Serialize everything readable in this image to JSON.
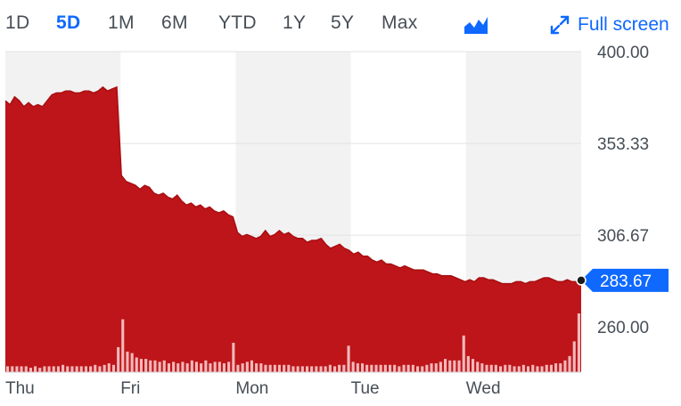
{
  "ranges": [
    {
      "label": "1D",
      "active": false
    },
    {
      "label": "5D",
      "active": true
    },
    {
      "label": "1M",
      "active": false
    },
    {
      "label": "6M",
      "active": false
    },
    {
      "label": "YTD",
      "active": false
    },
    {
      "label": "1Y",
      "active": false
    },
    {
      "label": "5Y",
      "active": false
    },
    {
      "label": "Max",
      "active": false
    }
  ],
  "chart_type_icon": "mountain-chart-icon",
  "fullscreen": {
    "label": "Full screen",
    "icon": "expand-arrows-icon"
  },
  "colors": {
    "series_fill": "#bd1519",
    "series_line": "#a80f12",
    "active_tab": "#0f69ff",
    "price_badge": "#0f69ff",
    "band": "#f2f2f3",
    "grid": "#e3e3e3",
    "text": "#464e56"
  },
  "chart_data": {
    "type": "area",
    "title": "",
    "xlabel": "",
    "ylabel": "",
    "days": [
      "Thu",
      "Fri",
      "Mon",
      "Tue",
      "Wed"
    ],
    "yticks": [
      "400.00",
      "353.33",
      "306.67",
      "260.00"
    ],
    "ylim": [
      237,
      400
    ],
    "last_price": "283.67",
    "last_value": 283.67,
    "grid": true,
    "legend": "none",
    "price_series": [
      375,
      373,
      377,
      375,
      372,
      374,
      372,
      373,
      372,
      375,
      378,
      379,
      379,
      380,
      380,
      379,
      379,
      380,
      380,
      379,
      380,
      382,
      380,
      381,
      382,
      337,
      334,
      333,
      332,
      330,
      332,
      331,
      328,
      327,
      328,
      326,
      325,
      327,
      324,
      322,
      323,
      321,
      322,
      320,
      321,
      319,
      318,
      319,
      317,
      316,
      308,
      306,
      307,
      306,
      305,
      306,
      309,
      306,
      307,
      309,
      307,
      308,
      306,
      305,
      305,
      303,
      304,
      304,
      305,
      302,
      300,
      301,
      302,
      300,
      299,
      297,
      298,
      296,
      296,
      294,
      293,
      294,
      292,
      292,
      291,
      290,
      291,
      290,
      289,
      289,
      289,
      288,
      287,
      287,
      286,
      286,
      286,
      285,
      284,
      283,
      284,
      283,
      285,
      285,
      284,
      284,
      283,
      282,
      282,
      282,
      283,
      283,
      282,
      283,
      283,
      284,
      285,
      285,
      284,
      283,
      283,
      284,
      283,
      283,
      283.67
    ],
    "volume_series": [
      4,
      4,
      4,
      4,
      4,
      3,
      4,
      3,
      4,
      4,
      4,
      4,
      5,
      4,
      4,
      4,
      4,
      4,
      4,
      5,
      4,
      5,
      6,
      5,
      17,
      36,
      14,
      13,
      10,
      9,
      9,
      8,
      8,
      7,
      8,
      6,
      7,
      6,
      7,
      6,
      8,
      7,
      6,
      8,
      6,
      7,
      7,
      6,
      7,
      20,
      5,
      6,
      7,
      8,
      6,
      6,
      5,
      5,
      5,
      5,
      5,
      5,
      4,
      4,
      4,
      4,
      4,
      4,
      4,
      4,
      5,
      4,
      5,
      5,
      18,
      7,
      6,
      6,
      5,
      5,
      5,
      5,
      5,
      5,
      5,
      4,
      5,
      5,
      5,
      4,
      4,
      5,
      6,
      6,
      7,
      9,
      8,
      8,
      8,
      25,
      11,
      9,
      7,
      6,
      5,
      5,
      5,
      4,
      5,
      5,
      4,
      4,
      5,
      4,
      5,
      4,
      4,
      5,
      5,
      6,
      6,
      8,
      11,
      21,
      40
    ]
  }
}
